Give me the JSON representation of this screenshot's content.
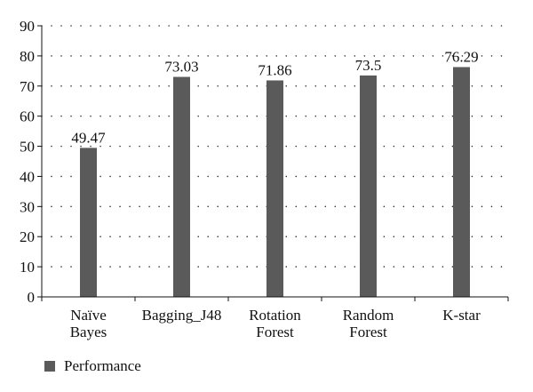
{
  "chart_data": {
    "type": "bar",
    "categories": [
      [
        "Naïve",
        "Bayes"
      ],
      [
        "Bagging_J48"
      ],
      [
        "Rotation",
        "Forest"
      ],
      [
        "Random",
        "Forest"
      ],
      [
        "K-star"
      ]
    ],
    "series": [
      {
        "name": "Performance",
        "values": [
          49.47,
          73.03,
          71.86,
          73.5,
          76.29
        ],
        "color": "#5a5a5a"
      }
    ],
    "data_labels": [
      "49.47",
      "73.03",
      "71.86",
      "73.5",
      "76.29"
    ],
    "yticks": [
      "0",
      "10",
      "20",
      "30",
      "40",
      "50",
      "60",
      "70",
      "80",
      "90"
    ],
    "ylim": [
      0,
      90
    ],
    "grid": "dotted horizontal",
    "legend_position": "bottom-left",
    "title": "",
    "xlabel": "",
    "ylabel": ""
  }
}
